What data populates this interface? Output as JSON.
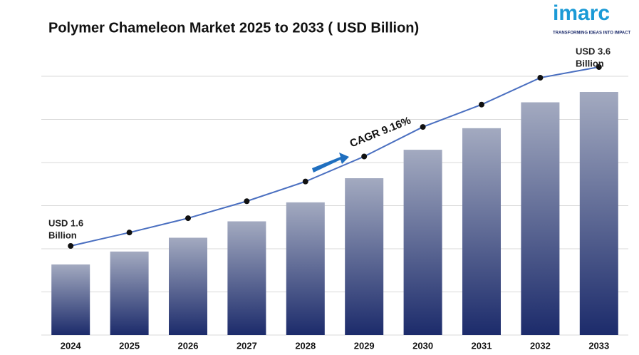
{
  "chart_data": {
    "type": "bar",
    "title": "Polymer Chameleon Market 2025 to 2033 ( USD Billion)",
    "categories": [
      "2024",
      "2025",
      "2026",
      "2027",
      "2028",
      "2029",
      "2030",
      "2031",
      "2032",
      "2033"
    ],
    "values": [
      1.6,
      1.75,
      1.91,
      2.1,
      2.32,
      2.6,
      2.93,
      3.18,
      3.48,
      3.6
    ],
    "color": "#1c2b6b",
    "line_color": "#4a6fc0",
    "grid": true,
    "start_label": [
      "USD 1.6",
      "Billion"
    ],
    "end_label": [
      "USD 3.6",
      "Billion"
    ],
    "cagr_label": "CAGR  9.16%"
  },
  "logo": {
    "name": "imarc",
    "tagline": "TRANSFORMING IDEAS INTO IMPACT"
  }
}
